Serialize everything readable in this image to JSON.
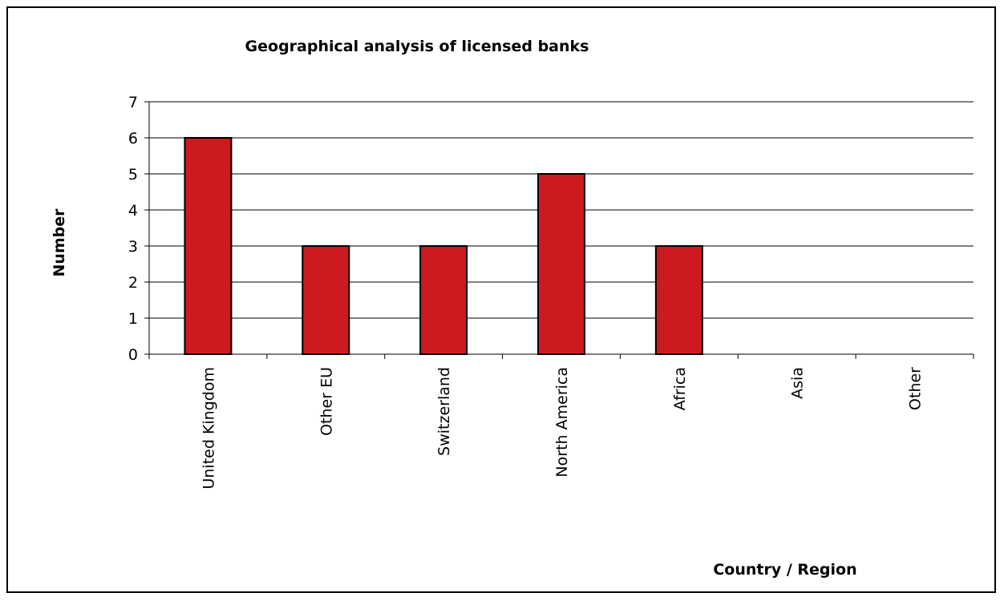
{
  "chart_data": {
    "type": "bar",
    "title": "Geographical analysis of licensed banks",
    "xlabel": "Country / Region",
    "ylabel": "Number",
    "categories": [
      "United Kingdom",
      "Other EU",
      "Switzerland",
      "North America",
      "Africa",
      "Asia",
      "Other"
    ],
    "values": [
      6,
      3,
      3,
      5,
      3,
      0,
      0
    ],
    "ylim": [
      0,
      7
    ],
    "yticks": [
      "0",
      "1",
      "2",
      "3",
      "4",
      "5",
      "6",
      "7"
    ],
    "grid": true,
    "legend": "none",
    "colors": {
      "bar": "#cc1a1f",
      "bar_stroke": "#000000",
      "grid": "#000000"
    }
  }
}
